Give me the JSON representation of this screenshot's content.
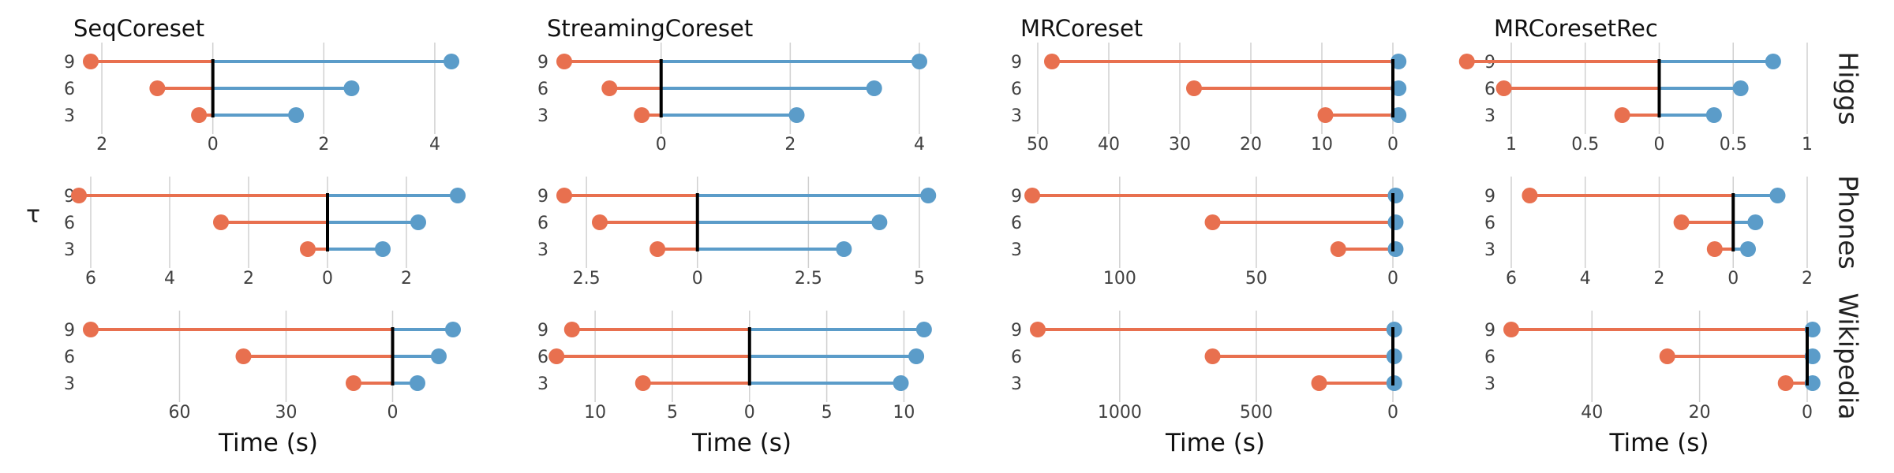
{
  "colors": {
    "left": "#E8704F",
    "right": "#5B9CC9",
    "zero": "#000000"
  },
  "columns": [
    "SeqCoreset",
    "StreamingCoreset",
    "MRCoreset",
    "MRCoresetRec"
  ],
  "rows": [
    "Higgs",
    "Phones",
    "Wikipedia"
  ],
  "ylabel": "τ",
  "xlabel": "Time (s)",
  "tau_ticks": [
    "9",
    "6",
    "3"
  ],
  "chart_data": [
    {
      "type": "dumbbell",
      "title": "SeqCoreset",
      "row": "Higgs",
      "xlim": [
        -2.2,
        4.2
      ],
      "ticks": [
        {
          "v": -2,
          "l": "2"
        },
        {
          "v": 0,
          "l": "0"
        },
        {
          "v": 2,
          "l": "2"
        },
        {
          "v": 4,
          "l": "4"
        }
      ],
      "tau": [
        9,
        6,
        3
      ],
      "left": [
        2.2,
        1.0,
        0.25
      ],
      "right": [
        4.3,
        2.5,
        1.5
      ]
    },
    {
      "type": "dumbbell",
      "title": "StreamingCoreset",
      "row": "Higgs",
      "xlim": [
        -1.5,
        4.0
      ],
      "ticks": [
        {
          "v": 0,
          "l": "0"
        },
        {
          "v": 2,
          "l": "2"
        },
        {
          "v": 4,
          "l": "4"
        }
      ],
      "tau": [
        9,
        6,
        3
      ],
      "left": [
        1.5,
        0.8,
        0.3
      ],
      "right": [
        4.0,
        3.3,
        2.1
      ]
    },
    {
      "type": "dumbbell",
      "title": "MRCoreset",
      "row": "Higgs",
      "xlim": [
        -50,
        0
      ],
      "ticks": [
        {
          "v": -50,
          "l": "50"
        },
        {
          "v": -40,
          "l": "40"
        },
        {
          "v": -30,
          "l": "30"
        },
        {
          "v": -20,
          "l": "20"
        },
        {
          "v": -10,
          "l": "10"
        },
        {
          "v": 0,
          "l": "0"
        }
      ],
      "tau": [
        9,
        6,
        3
      ],
      "left": [
        48,
        28,
        9.5
      ],
      "right": [
        0.8,
        0.8,
        0.8
      ]
    },
    {
      "type": "dumbbell",
      "title": "MRCoresetRec",
      "row": "Higgs",
      "xlim": [
        -1.0,
        1.0
      ],
      "ticks": [
        {
          "v": -1,
          "l": "1"
        },
        {
          "v": -0.5,
          "l": "0.5"
        },
        {
          "v": 0,
          "l": "0"
        },
        {
          "v": 0.5,
          "l": "0.5"
        },
        {
          "v": 1,
          "l": "1"
        }
      ],
      "tau": [
        9,
        6,
        3
      ],
      "left": [
        1.3,
        1.05,
        0.25
      ],
      "right": [
        0.77,
        0.55,
        0.37
      ]
    },
    {
      "type": "dumbbell",
      "row": "Phones",
      "xlim": [
        -6.0,
        3.0
      ],
      "ticks": [
        {
          "v": -6,
          "l": "6"
        },
        {
          "v": -4,
          "l": "4"
        },
        {
          "v": -2,
          "l": "2"
        },
        {
          "v": 0,
          "l": "0"
        },
        {
          "v": 2,
          "l": "2"
        }
      ],
      "tau": [
        9,
        6,
        3
      ],
      "left": [
        6.3,
        2.7,
        0.5
      ],
      "right": [
        3.3,
        2.3,
        1.4
      ]
    },
    {
      "type": "dumbbell",
      "row": "Phones",
      "xlim": [
        -3.0,
        5.0
      ],
      "ticks": [
        {
          "v": -2.5,
          "l": "2.5"
        },
        {
          "v": 0,
          "l": "0"
        },
        {
          "v": 2.5,
          "l": "2.5"
        },
        {
          "v": 5,
          "l": "5"
        }
      ],
      "tau": [
        9,
        6,
        3
      ],
      "left": [
        3.0,
        2.2,
        0.9
      ],
      "right": [
        5.2,
        4.1,
        3.3
      ]
    },
    {
      "type": "dumbbell",
      "row": "Phones",
      "xlim": [
        -130,
        0
      ],
      "ticks": [
        {
          "v": -100,
          "l": "100"
        },
        {
          "v": -50,
          "l": "50"
        },
        {
          "v": 0,
          "l": "0"
        }
      ],
      "tau": [
        9,
        6,
        3
      ],
      "left": [
        132,
        66,
        20
      ],
      "right": [
        1,
        1,
        1
      ]
    },
    {
      "type": "dumbbell",
      "row": "Phones",
      "xlim": [
        -6.0,
        2.0
      ],
      "ticks": [
        {
          "v": -6,
          "l": "6"
        },
        {
          "v": -4,
          "l": "4"
        },
        {
          "v": -2,
          "l": "2"
        },
        {
          "v": 0,
          "l": "0"
        },
        {
          "v": 2,
          "l": "2"
        }
      ],
      "tau": [
        9,
        6,
        3
      ],
      "left": [
        5.5,
        1.4,
        0.5
      ],
      "right": [
        1.2,
        0.6,
        0.4
      ]
    },
    {
      "type": "dumbbell",
      "row": "Wikipedia",
      "xlim": [
        -85,
        15
      ],
      "ticks": [
        {
          "v": -60,
          "l": "60"
        },
        {
          "v": -30,
          "l": "30"
        },
        {
          "v": 0,
          "l": "0"
        }
      ],
      "tau": [
        9,
        6,
        3
      ],
      "left": [
        85,
        42,
        11
      ],
      "right": [
        17,
        13,
        7
      ]
    },
    {
      "type": "dumbbell",
      "row": "Wikipedia",
      "xlim": [
        -12.0,
        11.0
      ],
      "ticks": [
        {
          "v": -10,
          "l": "10"
        },
        {
          "v": -5,
          "l": "5"
        },
        {
          "v": 0,
          "l": "0"
        },
        {
          "v": 5,
          "l": "5"
        },
        {
          "v": 10,
          "l": "10"
        }
      ],
      "tau": [
        9,
        6,
        3
      ],
      "left": [
        11.5,
        12.5,
        6.9
      ],
      "right": [
        11.3,
        10.8,
        9.8
      ]
    },
    {
      "type": "dumbbell",
      "row": "Wikipedia",
      "xlim": [
        -1300,
        0
      ],
      "ticks": [
        {
          "v": -1000,
          "l": "1000"
        },
        {
          "v": -500,
          "l": "500"
        },
        {
          "v": 0,
          "l": "0"
        }
      ],
      "tau": [
        9,
        6,
        3
      ],
      "left": [
        1300,
        660,
        270
      ],
      "right": [
        5,
        5,
        5
      ]
    },
    {
      "type": "dumbbell",
      "row": "Wikipedia",
      "xlim": [
        -55,
        0
      ],
      "ticks": [
        {
          "v": -40,
          "l": "40"
        },
        {
          "v": -20,
          "l": "20"
        },
        {
          "v": 0,
          "l": "0"
        }
      ],
      "tau": [
        9,
        6,
        3
      ],
      "left": [
        55,
        26,
        4
      ],
      "right": [
        1,
        1,
        1
      ]
    }
  ]
}
